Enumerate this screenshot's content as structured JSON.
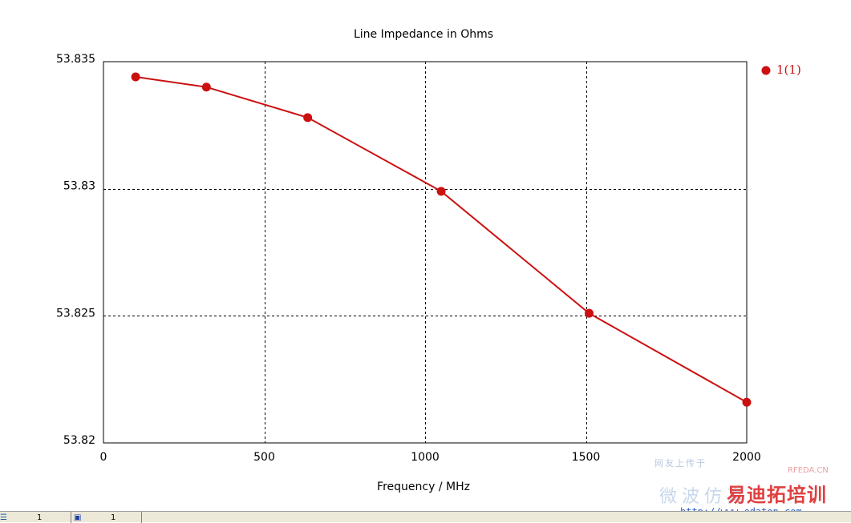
{
  "chart_data": {
    "type": "line",
    "title": "Line Impedance in Ohms",
    "xlabel": "Frequency / MHz",
    "ylabel": "",
    "xlim": [
      0,
      2000
    ],
    "ylim": [
      53.82,
      53.835
    ],
    "x_ticks": [
      0,
      500,
      1000,
      1500,
      2000
    ],
    "x_tick_labels": [
      "0",
      "500",
      "1000",
      "1500",
      "2000"
    ],
    "y_ticks": [
      53.82,
      53.825,
      53.83,
      53.835
    ],
    "y_tick_labels": [
      "53.82",
      "53.825",
      "53.83",
      "53.835"
    ],
    "grid": true,
    "legend_position": "top-right",
    "series": [
      {
        "name": "1(1)",
        "color": "#cc1010",
        "x": [
          100,
          320,
          635,
          1050,
          1510,
          2000
        ],
        "y": [
          53.8344,
          53.834,
          53.8328,
          53.8299,
          53.8251,
          53.8216
        ]
      }
    ]
  },
  "watermark": {
    "line1": "网友上传于",
    "line2": "RFEDA.CN",
    "line3": "微波仿真",
    "line4": "易迪拓培训",
    "line5": "http://www.edatop.com"
  },
  "statusbar": {
    "cell1": "1",
    "cell2": "1"
  }
}
